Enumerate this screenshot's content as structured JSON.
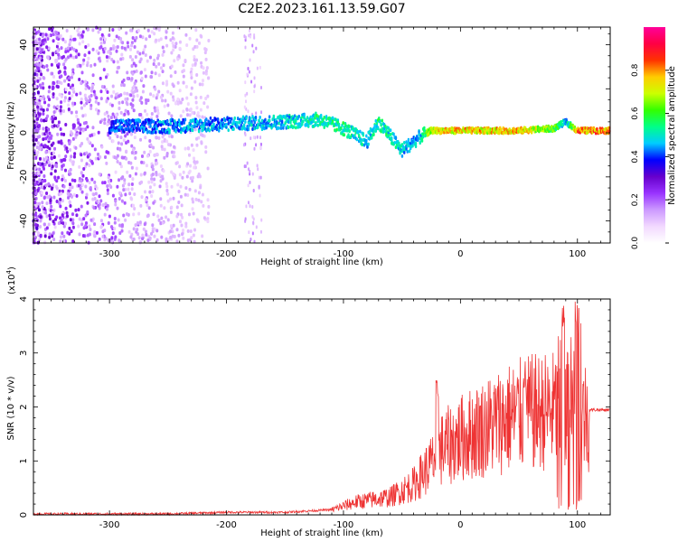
{
  "title": "C2E2.2023.161.13.59.G07",
  "chart_data": [
    {
      "type": "heatmap",
      "title": "",
      "xlabel": "Height of straight line (km)",
      "ylabel": "Frequency (Hz)",
      "xlim": [
        -365,
        128
      ],
      "ylim": [
        -50,
        48
      ],
      "x_ticks": [
        "-300",
        "-200",
        "-100",
        "0",
        "100"
      ],
      "y_ticks": [
        "-40",
        "-20",
        "0",
        "20",
        "40"
      ],
      "colorbar": {
        "label": "Normalized spectral amplitude",
        "range": [
          0,
          1
        ],
        "ticks": [
          "0.0",
          "0.2",
          "0.4",
          "0.6",
          "0.8"
        ],
        "colors": [
          "#ffffff",
          "#f2d9ff",
          "#cc99ff",
          "#9933ff",
          "#6600cc",
          "#0000ff",
          "#00ccff",
          "#00ff88",
          "#33ff00",
          "#ccff00",
          "#ffcc00",
          "#ff3300",
          "#ff0044",
          "#ff0099"
        ]
      },
      "signal_track": [
        {
          "x": -300,
          "freq": 3,
          "amp": 0.45
        },
        {
          "x": -250,
          "freq": 3,
          "amp": 0.5
        },
        {
          "x": -200,
          "freq": 4,
          "amp": 0.5
        },
        {
          "x": -150,
          "freq": 5,
          "amp": 0.55
        },
        {
          "x": -120,
          "freq": 6,
          "amp": 0.6
        },
        {
          "x": -100,
          "freq": 2,
          "amp": 0.6
        },
        {
          "x": -80,
          "freq": -4,
          "amp": 0.55
        },
        {
          "x": -70,
          "freq": 5,
          "amp": 0.6
        },
        {
          "x": -50,
          "freq": -8,
          "amp": 0.55
        },
        {
          "x": -35,
          "freq": -2,
          "amp": 0.5
        },
        {
          "x": -25,
          "freq": 1,
          "amp": 0.8
        },
        {
          "x": 0,
          "freq": 1,
          "amp": 0.85
        },
        {
          "x": 50,
          "freq": 1,
          "amp": 0.85
        },
        {
          "x": 80,
          "freq": 2,
          "amp": 0.7
        },
        {
          "x": 90,
          "freq": 5,
          "amp": 0.5
        },
        {
          "x": 100,
          "freq": 1,
          "amp": 0.9
        },
        {
          "x": 128,
          "freq": 1,
          "amp": 0.9
        }
      ]
    },
    {
      "type": "line",
      "title": "",
      "xlabel": "Height of straight line (km)",
      "ylabel": "SNR (10 * v/v)",
      "y_multiplier": "(x10",
      "y_multiplier_exp": "4",
      "y_multiplier_close": ")",
      "xlim": [
        -365,
        128
      ],
      "ylim": [
        0,
        4
      ],
      "x_ticks": [
        "-300",
        "-200",
        "-100",
        "0",
        "100"
      ],
      "y_ticks": [
        "0",
        "1",
        "2",
        "3",
        "4"
      ],
      "line_color": "#ee3333",
      "envelope": [
        {
          "x": -365,
          "y": 0.02
        },
        {
          "x": -250,
          "y": 0.02
        },
        {
          "x": -200,
          "y": 0.05
        },
        {
          "x": -150,
          "y": 0.05
        },
        {
          "x": -110,
          "y": 0.1
        },
        {
          "x": -90,
          "y": 0.25
        },
        {
          "x": -60,
          "y": 0.35
        },
        {
          "x": -40,
          "y": 0.6
        },
        {
          "x": -25,
          "y": 1.0
        },
        {
          "x": -15,
          "y": 1.3
        },
        {
          "x": 0,
          "y": 1.5
        },
        {
          "x": 20,
          "y": 1.7
        },
        {
          "x": 40,
          "y": 1.9
        },
        {
          "x": 60,
          "y": 2.0
        },
        {
          "x": 80,
          "y": 2.05
        },
        {
          "x": 90,
          "y": 2.1
        },
        {
          "x": 100,
          "y": 2.0
        },
        {
          "x": 110,
          "y": 1.95
        },
        {
          "x": 128,
          "y": 1.95
        }
      ],
      "peaks": [
        {
          "x": -20,
          "y": 2.5
        },
        {
          "x": 55,
          "y": 2.7
        },
        {
          "x": 88,
          "y": 3.9
        },
        {
          "x": 99,
          "y": 4.0
        },
        {
          "x": 101,
          "y": 3.9
        }
      ]
    }
  ]
}
